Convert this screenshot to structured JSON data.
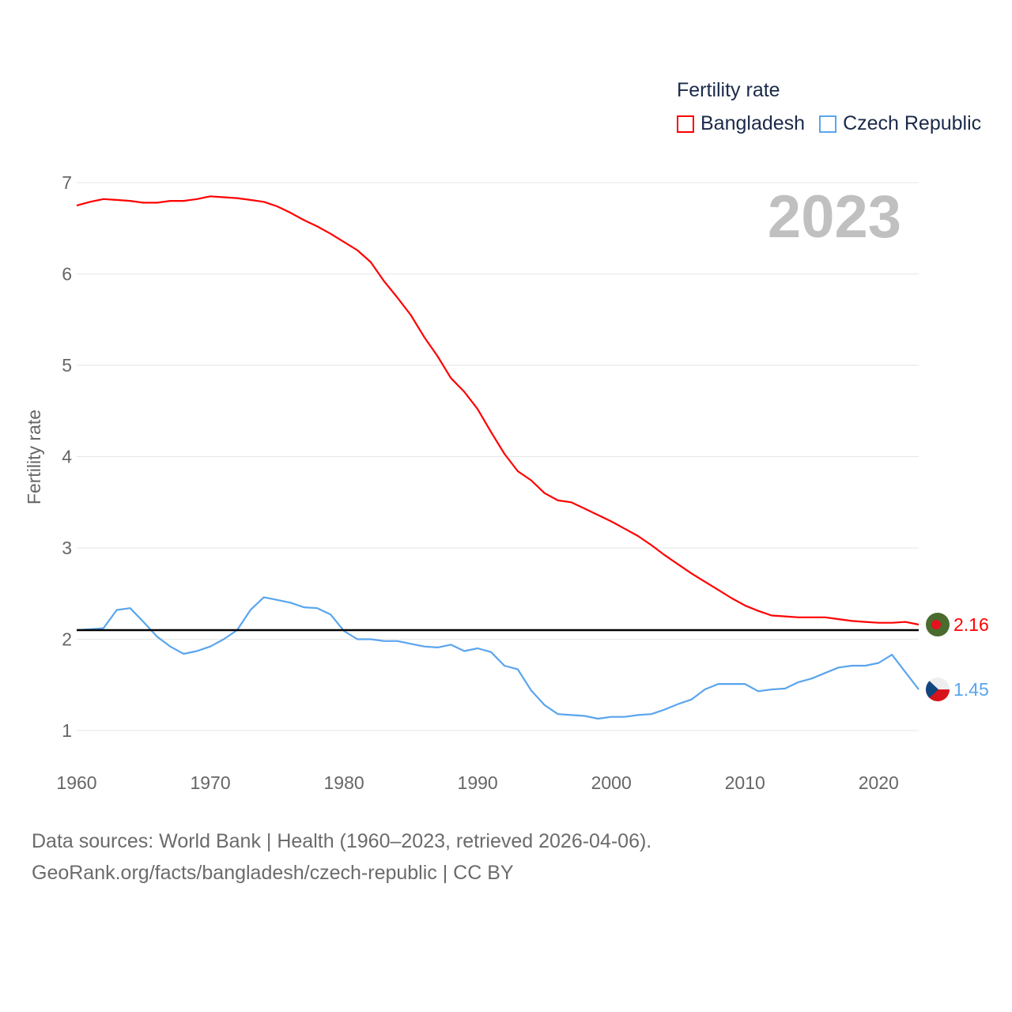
{
  "chart_data": {
    "type": "line",
    "title": "Fertility rate",
    "ylabel": "Fertility rate",
    "xlabel": "",
    "year_label": "2023",
    "xlim": [
      1960,
      2023
    ],
    "ylim": [
      1,
      7
    ],
    "x_ticks": [
      "1960",
      "1970",
      "1980",
      "1990",
      "2000",
      "2010",
      "2020"
    ],
    "y_ticks": [
      "1",
      "2",
      "3",
      "4",
      "5",
      "6",
      "7"
    ],
    "grid": true,
    "legend_position": "top-right",
    "reference_line": 2.1,
    "x": [
      1960,
      1961,
      1962,
      1963,
      1964,
      1965,
      1966,
      1967,
      1968,
      1969,
      1970,
      1971,
      1972,
      1973,
      1974,
      1975,
      1976,
      1977,
      1978,
      1979,
      1980,
      1981,
      1982,
      1983,
      1984,
      1985,
      1986,
      1987,
      1988,
      1989,
      1990,
      1991,
      1992,
      1993,
      1994,
      1995,
      1996,
      1997,
      1998,
      1999,
      2000,
      2001,
      2002,
      2003,
      2004,
      2005,
      2006,
      2007,
      2008,
      2009,
      2010,
      2011,
      2012,
      2013,
      2014,
      2015,
      2016,
      2017,
      2018,
      2019,
      2020,
      2021,
      2022,
      2023
    ],
    "series": [
      {
        "name": "Bangladesh",
        "color": "#ff0000",
        "end_label": "2.16",
        "values": [
          6.75,
          6.79,
          6.82,
          6.81,
          6.8,
          6.78,
          6.78,
          6.8,
          6.8,
          6.82,
          6.85,
          6.84,
          6.83,
          6.81,
          6.79,
          6.74,
          6.67,
          6.59,
          6.52,
          6.44,
          6.35,
          6.26,
          6.13,
          5.92,
          5.74,
          5.55,
          5.31,
          5.1,
          4.86,
          4.71,
          4.52,
          4.27,
          4.03,
          3.84,
          3.74,
          3.6,
          3.52,
          3.5,
          3.43,
          3.36,
          3.29,
          3.21,
          3.13,
          3.03,
          2.92,
          2.82,
          2.72,
          2.63,
          2.54,
          2.45,
          2.37,
          2.31,
          2.26,
          2.25,
          2.24,
          2.24,
          2.24,
          2.22,
          2.2,
          2.19,
          2.18,
          2.18,
          2.19,
          2.16
        ]
      },
      {
        "name": "Czech Republic",
        "color": "#5aa5ee",
        "end_label": "1.45",
        "values": [
          2.1,
          2.11,
          2.12,
          2.32,
          2.34,
          2.19,
          2.03,
          1.92,
          1.84,
          1.87,
          1.92,
          2.0,
          2.1,
          2.32,
          2.46,
          2.43,
          2.4,
          2.35,
          2.34,
          2.27,
          2.09,
          2.0,
          2.0,
          1.98,
          1.98,
          1.95,
          1.92,
          1.91,
          1.94,
          1.87,
          1.9,
          1.86,
          1.71,
          1.67,
          1.44,
          1.28,
          1.18,
          1.17,
          1.16,
          1.13,
          1.15,
          1.15,
          1.17,
          1.18,
          1.23,
          1.29,
          1.34,
          1.45,
          1.51,
          1.51,
          1.51,
          1.43,
          1.45,
          1.46,
          1.53,
          1.57,
          1.63,
          1.69,
          1.71,
          1.71,
          1.74,
          1.83,
          1.64,
          1.45
        ]
      }
    ]
  },
  "footer": {
    "line1": "Data sources: World Bank | Health (1960–2023, retrieved 2026-04-06).",
    "line2": "GeoRank.org/facts/bangladesh/czech-republic | CC BY"
  }
}
